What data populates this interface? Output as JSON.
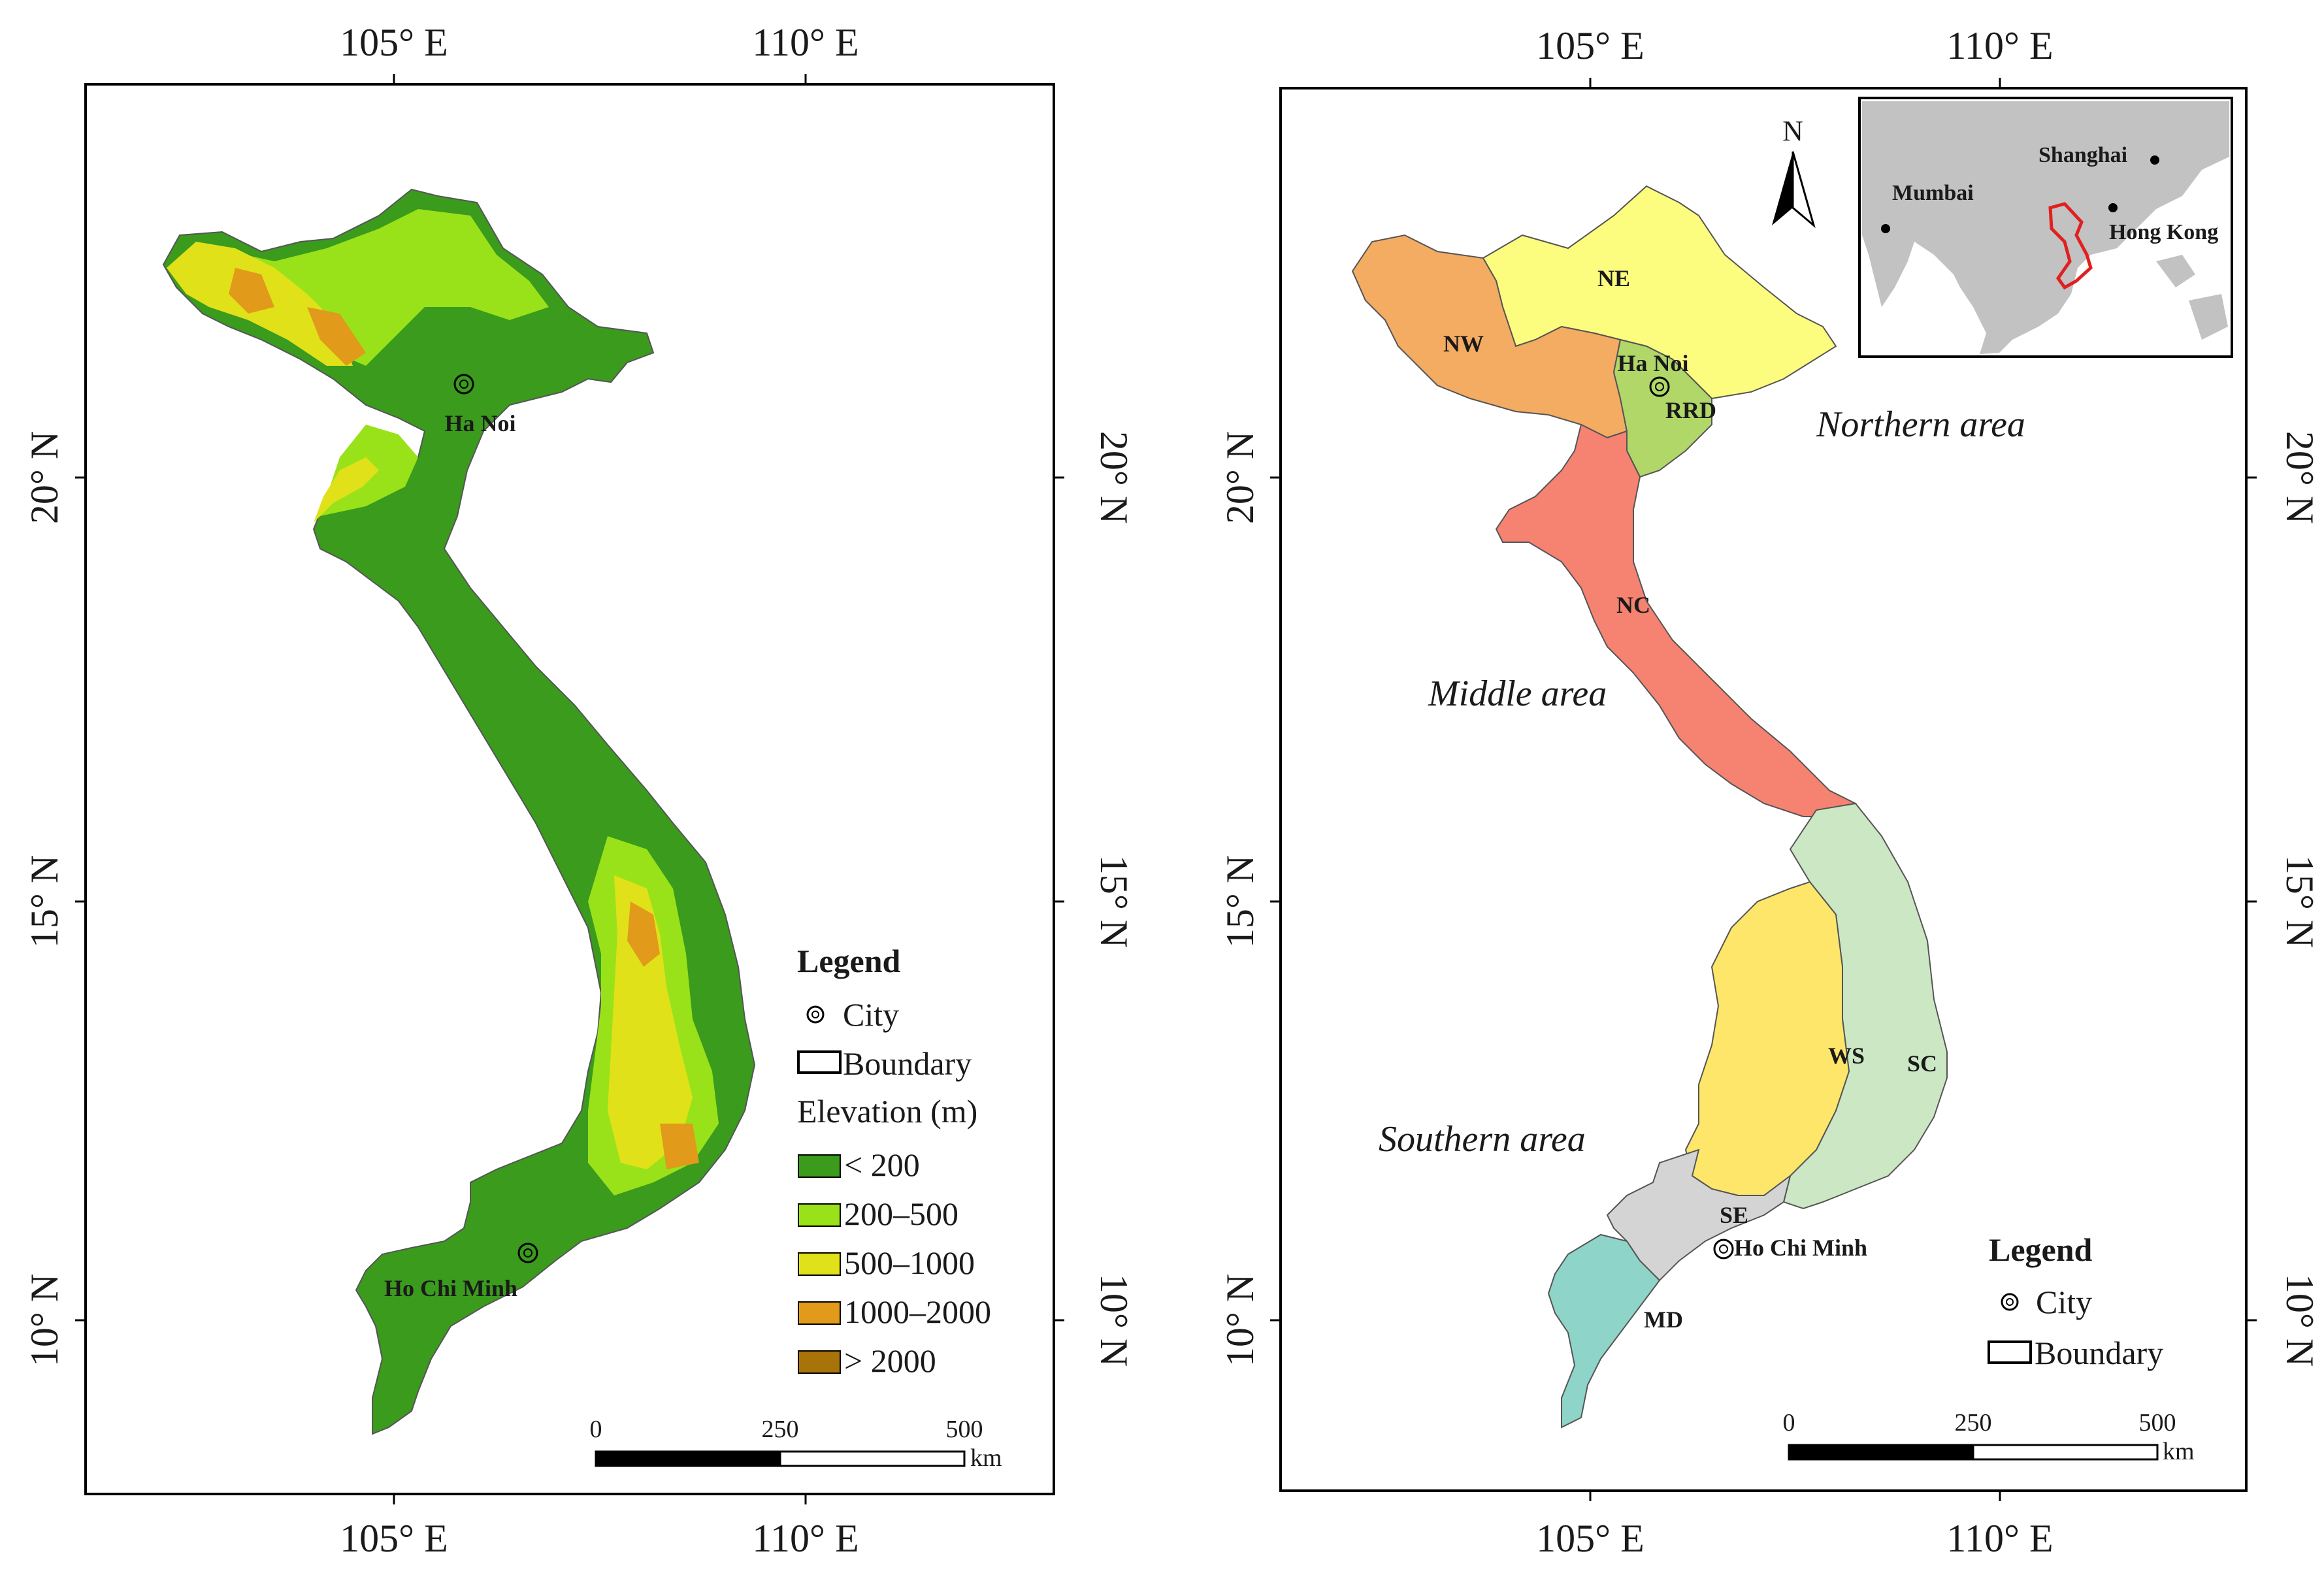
{
  "left_map": {
    "ticks": {
      "top": [
        "105° E",
        "110° E"
      ],
      "bottom": [
        "105° E",
        "110° E"
      ],
      "left": [
        "20° N",
        "15° N",
        "10° N"
      ],
      "right": [
        "20° N",
        "15° N",
        "10° N"
      ]
    },
    "cities": [
      "Ha Noi",
      "Ho Chi Minh"
    ],
    "legend": {
      "title": "Legend",
      "city": "City",
      "boundary": "Boundary",
      "elevation_title": "Elevation (m)",
      "classes": [
        {
          "label": "< 200",
          "color": "#3a9b1c"
        },
        {
          "label": "200–500",
          "color": "#99e21a"
        },
        {
          "label": "500–1000",
          "color": "#e1e11a"
        },
        {
          "label": "1000–2000",
          "color": "#e19a1a"
        },
        {
          "label": "> 2000",
          "color": "#a8740a"
        }
      ]
    },
    "scale": {
      "labels": [
        "0",
        "250",
        "500"
      ],
      "unit": "km"
    }
  },
  "right_map": {
    "ticks": {
      "top": [
        "105° E",
        "110° E"
      ],
      "bottom": [
        "105° E",
        "110° E"
      ],
      "left": [
        "20° N",
        "15° N",
        "10° N"
      ],
      "right": [
        "20° N",
        "15° N",
        "10° N"
      ]
    },
    "regions": [
      {
        "label": "NE",
        "color": "#fcfc7e"
      },
      {
        "label": "NW",
        "color": "#f4ab62"
      },
      {
        "label": "RRD",
        "color": "#b0d768"
      },
      {
        "label": "NC",
        "color": "#f68271"
      },
      {
        "label": "SC",
        "color": "#cce7c4"
      },
      {
        "label": "WS",
        "color": "#fde66a"
      },
      {
        "label": "SE",
        "color": "#d4d4d4"
      },
      {
        "label": "MD",
        "color": "#8fd4c8"
      }
    ],
    "cities": [
      "Ha Noi",
      "Ho Chi Minh"
    ],
    "areas": [
      "Northern area",
      "Middle area",
      "Southern area"
    ],
    "north_arrow": "N",
    "inset": {
      "cities": [
        "Shanghai",
        "Mumbai",
        "Hong Kong"
      ],
      "land_color": "#c2c2c2",
      "highlight_color": "#e02020"
    },
    "legend": {
      "title": "Legend",
      "city": "City",
      "boundary": "Boundary"
    },
    "scale": {
      "labels": [
        "0",
        "250",
        "500"
      ],
      "unit": "km"
    }
  }
}
